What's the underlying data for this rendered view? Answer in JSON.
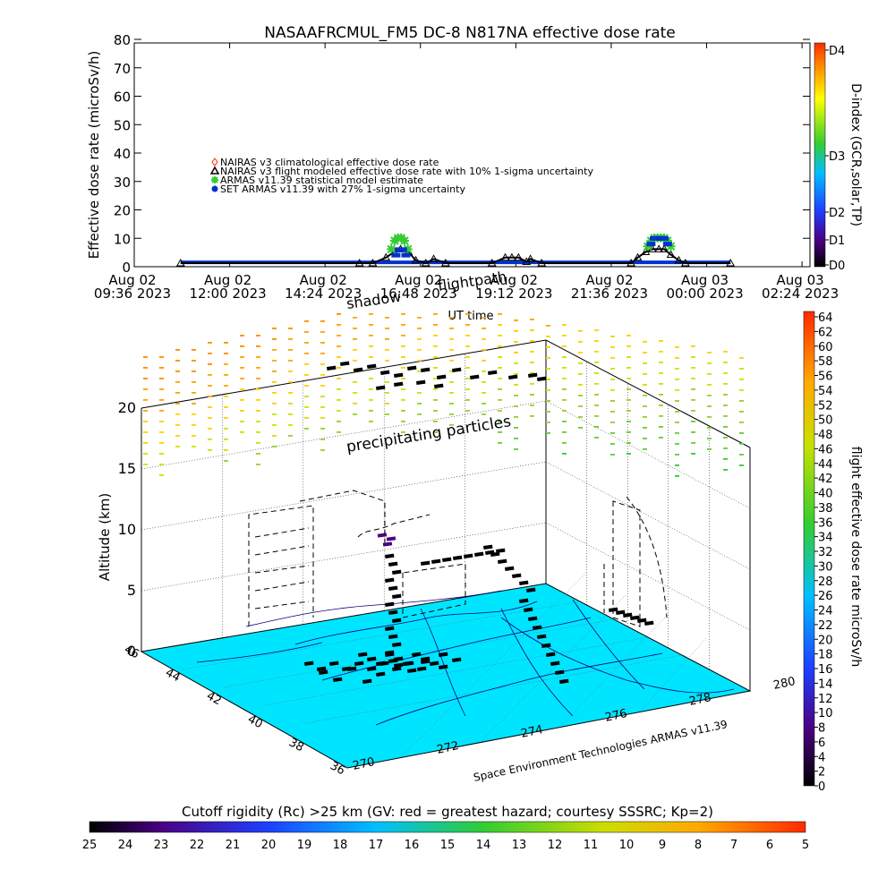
{
  "chart_data": [
    {
      "type": "line",
      "title": "NASAAFRCMUL_FM5 DC-8   N817NA effective dose rate",
      "ylabel": "Effective dose rate (microSv/h)",
      "xlabel": "UT time",
      "ylim": [
        0,
        80
      ],
      "yticks": [
        0,
        10,
        20,
        30,
        40,
        50,
        60,
        70,
        80
      ],
      "xlim": [
        0,
        1020
      ],
      "xticks": [
        {
          "m": 0,
          "line1": "Aug 02",
          "line2": "09:36 2023"
        },
        {
          "m": 144,
          "line1": "Aug 02",
          "line2": "12:00 2023"
        },
        {
          "m": 288,
          "line1": "Aug 02",
          "line2": "14:24 2023"
        },
        {
          "m": 432,
          "line1": "Aug 02",
          "line2": "16:48 2023"
        },
        {
          "m": 576,
          "line1": "Aug 02",
          "line2": "19:12 2023"
        },
        {
          "m": 720,
          "line1": "Aug 02",
          "line2": "21:36 2023"
        },
        {
          "m": 864,
          "line1": "Aug 03",
          "line2": "00:00 2023"
        },
        {
          "m": 1008,
          "line1": "Aug 03",
          "line2": "02:24 2023"
        }
      ],
      "legend": [
        {
          "label": "NAIRAS v3 climatological effective dose rate",
          "color": "#ff2a00",
          "marker": "diamond"
        },
        {
          "label": "NAIRAS v3 flight modeled effective dose rate with 10% 1-sigma uncertainty",
          "color": "#000000",
          "marker": "triangle"
        },
        {
          "label": "ARMAS v11.39 statistical model estimate",
          "color": "#33cc33",
          "marker": "star"
        },
        {
          "label": "SET ARMAS v11.39 with 27% 1-sigma uncertainty",
          "color": "#0033cc",
          "marker": "dot"
        }
      ],
      "series": [
        {
          "name": "NAIRAS v3 flight modeled effective dose rate with 10% 1-sigma uncertainty",
          "x": [
            70,
            340,
            360,
            380,
            392,
            402,
            414,
            425,
            440,
            452,
            470,
            540,
            560,
            570,
            580,
            592,
            598,
            615,
            750,
            760,
            772,
            782,
            792,
            800,
            810,
            822,
            832,
            900
          ],
          "y": [
            0,
            0,
            0,
            2,
            4,
            5,
            4,
            1,
            0,
            1.5,
            0,
            0,
            2,
            2,
            2,
            0.5,
            1.5,
            0,
            0,
            2,
            4,
            5,
            5,
            5,
            3,
            1,
            0,
            0
          ]
        },
        {
          "name": "ARMAS v11.39 statistical model estimate",
          "x": [
            388,
            393,
            398,
            403,
            408,
            413,
            775,
            780,
            785,
            790,
            795,
            800,
            805,
            810
          ],
          "y": [
            5,
            8,
            9,
            9,
            8,
            5,
            6,
            8,
            9,
            9,
            9,
            9,
            8,
            6
          ]
        },
        {
          "name": "SET ARMAS v11.39 with 27% 1-sigma uncertainty",
          "x": [
            395,
            400,
            405,
            410,
            780,
            785,
            790,
            795,
            800,
            805
          ],
          "y": [
            3,
            5,
            5,
            3,
            7,
            9,
            9,
            9,
            9,
            7
          ]
        }
      ],
      "baseline": {
        "from": 70,
        "to": 900,
        "value": 0.3
      }
    },
    {
      "type": "heatmap",
      "title": "D-index (GCR,solar,TP)",
      "ticks": [
        "D0",
        "D1",
        "D2",
        "D3",
        "D4"
      ],
      "tick_values": [
        0,
        1,
        2,
        3,
        4
      ]
    },
    {
      "type": "heatmap",
      "title": "flight effective dose rate microSv/h",
      "range": [
        0,
        64
      ],
      "ticks": [
        0,
        2,
        4,
        6,
        8,
        10,
        12,
        14,
        16,
        18,
        20,
        22,
        24,
        26,
        28,
        30,
        32,
        34,
        36,
        38,
        40,
        42,
        44,
        46,
        48,
        50,
        52,
        54,
        56,
        58,
        60,
        62,
        64
      ]
    },
    {
      "type": "heatmap",
      "title": "Cutoff rigidity (Rc) >25 km (GV: red = greatest hazard; courtesy SSSRC; Kp=2)",
      "ticks": [
        25,
        24,
        23,
        22,
        21,
        20,
        19,
        18,
        17,
        16,
        15,
        14,
        13,
        12,
        11,
        10,
        9,
        8,
        7,
        6,
        5
      ]
    },
    {
      "type": "scatter",
      "zlabel": "Altitude (km)",
      "zticks": [
        0,
        5,
        10,
        15,
        20
      ],
      "lat_ticks": [
        36,
        38,
        40,
        42,
        44,
        46
      ],
      "lon_ticks": [
        270,
        272,
        274,
        276,
        278,
        280
      ],
      "annotations": [
        "precipitating particles",
        "shadow",
        "flightpath"
      ],
      "credit": "Space Environment Technologies ARMAS v11.39"
    }
  ],
  "colors": {
    "map_fill": "#00e5ff",
    "map_lines": "#000080",
    "flight_marks": "#000000",
    "grid": "#000000"
  }
}
